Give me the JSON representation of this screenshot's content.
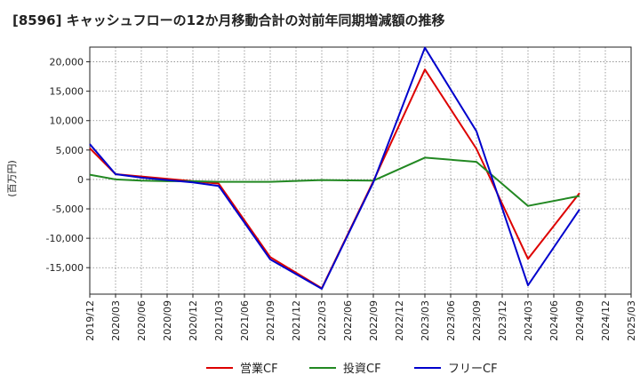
{
  "chart_data": {
    "type": "line",
    "title": "[8596]  キャッシュフローの12か月移動合計の対前年同期増減額の推移",
    "ylabel": "(百万円)",
    "xlabel": "",
    "ylim": [
      -19500,
      22500
    ],
    "yticks": [
      20000,
      15000,
      10000,
      5000,
      0,
      -5000,
      -10000,
      -15000
    ],
    "ytick_labels": [
      "20,000",
      "15,000",
      "10,000",
      "5,000",
      "0",
      "-5,000",
      "-10,000",
      "-15,000"
    ],
    "categories": [
      "2019/12",
      "2020/03",
      "2020/06",
      "2020/09",
      "2020/12",
      "2021/03",
      "2021/06",
      "2021/09",
      "2021/12",
      "2022/03",
      "2022/06",
      "2022/09",
      "2022/12",
      "2023/03",
      "2023/06",
      "2023/09",
      "2023/12",
      "2024/03",
      "2024/06",
      "2024/09",
      "2024/12",
      "2025/03"
    ],
    "grid": true,
    "legend_position": "bottom-center",
    "series": [
      {
        "name": "営業CF",
        "color": "#dd0000",
        "values": [
          5300,
          900,
          500,
          100,
          -300,
          -700,
          null,
          -13200,
          null,
          -18500,
          null,
          -300,
          null,
          18700,
          null,
          5200,
          null,
          -13500,
          null,
          -2300,
          null,
          null
        ]
      },
      {
        "name": "投資CF",
        "color": "#228822",
        "values": [
          800,
          0,
          -200,
          -300,
          -300,
          -400,
          null,
          -400,
          null,
          -100,
          null,
          -200,
          null,
          3700,
          null,
          3000,
          null,
          -4500,
          null,
          -2800,
          null,
          null
        ]
      },
      {
        "name": "フリーCF",
        "color": "#0000cc",
        "values": [
          6000,
          900,
          300,
          -100,
          -500,
          -1100,
          null,
          -13600,
          null,
          -18600,
          null,
          -500,
          null,
          22400,
          null,
          8200,
          null,
          -18000,
          null,
          -5100,
          null,
          null
        ]
      }
    ]
  }
}
